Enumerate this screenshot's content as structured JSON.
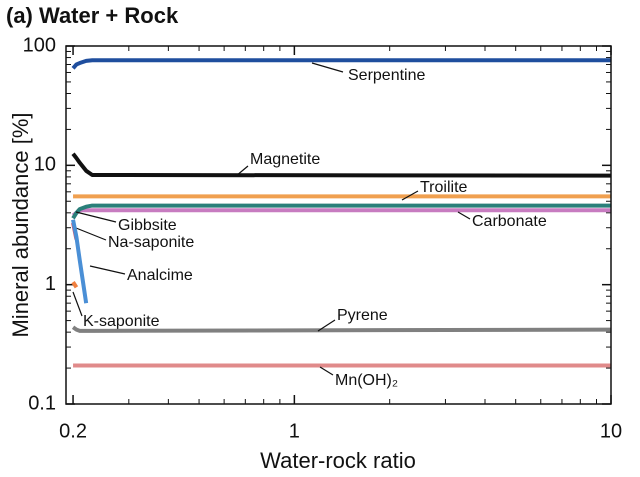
{
  "chart_data": {
    "type": "line",
    "title": "(a) Water + Rock",
    "x_label": "Water-rock ratio",
    "y_label": "Mineral abundance [%]",
    "x_scale": "log",
    "y_scale": "log",
    "x": [
      0.2,
      0.205,
      0.21,
      0.22,
      0.23,
      10
    ],
    "series": [
      {
        "name": "Serpentine",
        "color": "#1f4e9e",
        "values": [
          65,
          70,
          72,
          75,
          76,
          76
        ]
      },
      {
        "name": "Magnetite",
        "color": "#111111",
        "values": [
          12.5,
          11.5,
          10.5,
          9,
          8.3,
          8.2
        ]
      },
      {
        "name": "Troilite",
        "color": "#f0a050",
        "values": [
          5.5,
          5.5,
          5.5,
          5.5,
          5.5,
          5.5
        ]
      },
      {
        "name": "Carbonate",
        "color": "#c77cc0",
        "values": [
          3.8,
          4.0,
          4.2,
          4.2,
          4.2,
          4.2
        ]
      },
      {
        "name": "Gibbsite",
        "color": "#2a7f7a",
        "values": [
          3.6,
          4.0,
          4.3,
          4.5,
          4.6,
          4.6
        ]
      },
      {
        "name": "Na-saponite",
        "color": "#e05060",
        "values": [
          3.3,
          2.4,
          null,
          null,
          null,
          null
        ]
      },
      {
        "name": "Analcime",
        "color": "#4a8fd6",
        "values": [
          3.5,
          2.5,
          1.6,
          0.7,
          null,
          null
        ]
      },
      {
        "name": "K-saponite",
        "color": "#f08040",
        "values": [
          1.05,
          0.95,
          null,
          null,
          null,
          null
        ]
      },
      {
        "name": "Pyrene",
        "color": "#808080",
        "values": [
          0.44,
          0.42,
          0.41,
          0.41,
          0.41,
          0.42
        ]
      },
      {
        "name": "Mn(OH)₂",
        "color": "#e08a8a",
        "values": [
          0.21,
          0.21,
          0.21,
          0.21,
          0.21,
          0.21
        ]
      }
    ],
    "xlim": [
      0.19,
      10
    ],
    "ylim": [
      0.1,
      100
    ],
    "xticks": [
      0.2,
      1,
      10
    ],
    "yticks": [
      0.1,
      1,
      10,
      100
    ],
    "xminorticks": [
      0.3,
      0.4,
      0.5,
      0.6,
      0.7,
      0.8,
      0.9,
      2,
      3,
      4,
      5,
      6,
      7,
      8,
      9
    ],
    "yminorticks": [
      0.2,
      0.3,
      0.4,
      0.5,
      0.6,
      0.7,
      0.8,
      0.9,
      2,
      3,
      4,
      5,
      6,
      7,
      8,
      9,
      20,
      30,
      40,
      50,
      60,
      70,
      80,
      90
    ]
  }
}
